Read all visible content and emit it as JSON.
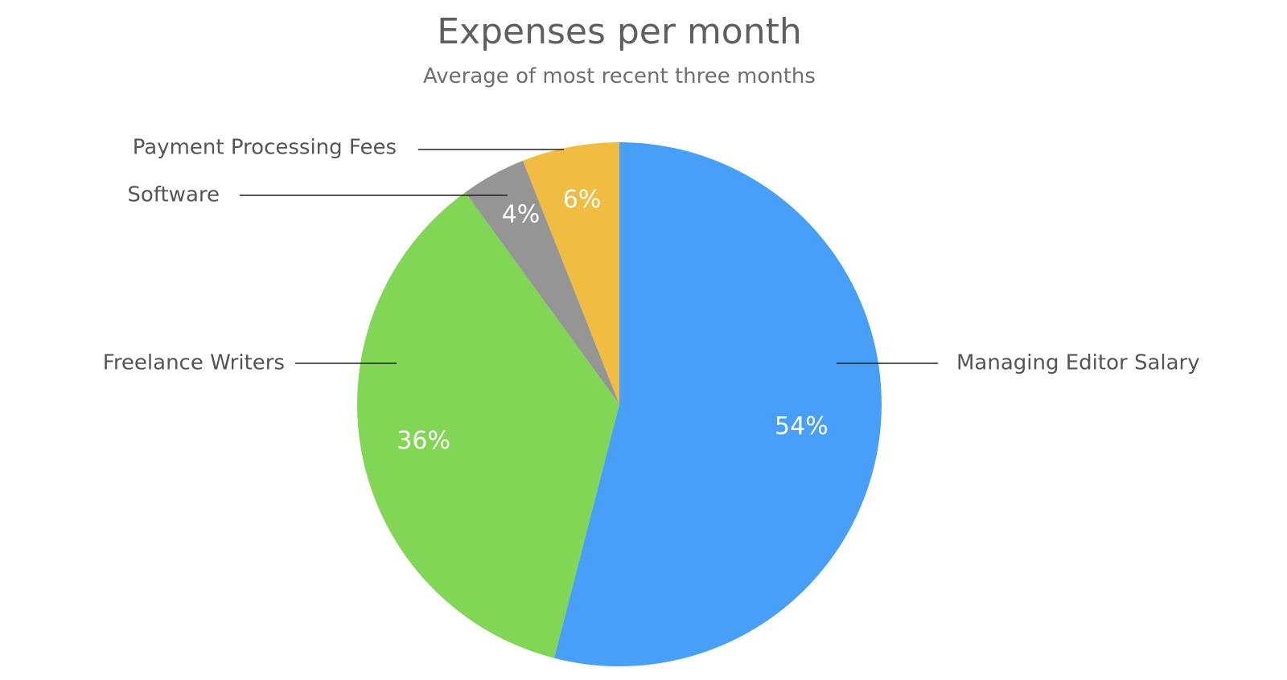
{
  "chart_data": {
    "type": "pie",
    "title": "Expenses per month",
    "subtitle": "Average of most recent three months",
    "slices": [
      {
        "label": "Managing Editor Salary",
        "value": 54,
        "value_label": "54%",
        "color": "#479ff8"
      },
      {
        "label": "Freelance Writers",
        "value": 36,
        "value_label": "36%",
        "color": "#82d656"
      },
      {
        "label": "Software",
        "value": 4,
        "value_label": "4%",
        "color": "#959595"
      },
      {
        "label": "Payment Processing Fees",
        "value": 6,
        "value_label": "6%",
        "color": "#f0bc42"
      }
    ],
    "start_angle": "12 o'clock",
    "direction": "clockwise",
    "legend": "none"
  }
}
